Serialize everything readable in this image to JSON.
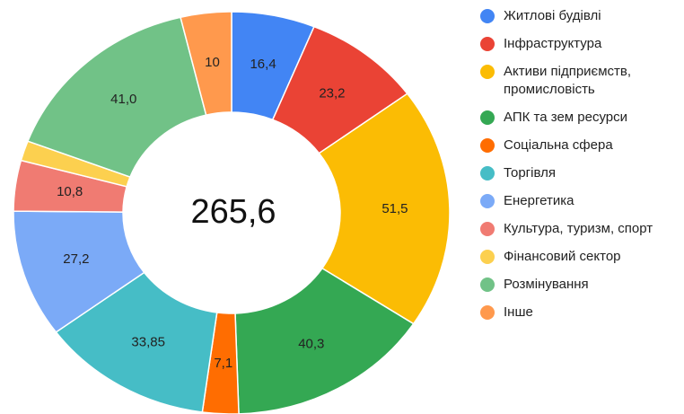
{
  "chart_data": {
    "type": "donut",
    "center_label": "265,6",
    "categories": [
      "Житлові будівлі",
      "Інфраструктура",
      "Активи підприємств, промисловість",
      "АПК та зем ресурси",
      "Соціальна сфера",
      "Торгівля",
      "Енергетика",
      "Культура, туризм, спорт",
      "Фінансовий сектор",
      "Розмінування",
      "Інше"
    ],
    "values": [
      16.4,
      23.2,
      51.5,
      40.3,
      7.1,
      33.85,
      27.2,
      10.8,
      4.25,
      41.0,
      10
    ],
    "value_labels": [
      "16,4",
      "23,2",
      "51,5",
      "40,3",
      "7,1",
      "33,85",
      "27,2",
      "10,8",
      null,
      "41,0",
      "10"
    ],
    "colors": [
      "#4285f4",
      "#ea4335",
      "#fbbc04",
      "#34a853",
      "#ff6d01",
      "#46bdc6",
      "#7baaf7",
      "#f07b72",
      "#fcd04f",
      "#71c287",
      "#ff994d"
    ],
    "legend": "right"
  }
}
